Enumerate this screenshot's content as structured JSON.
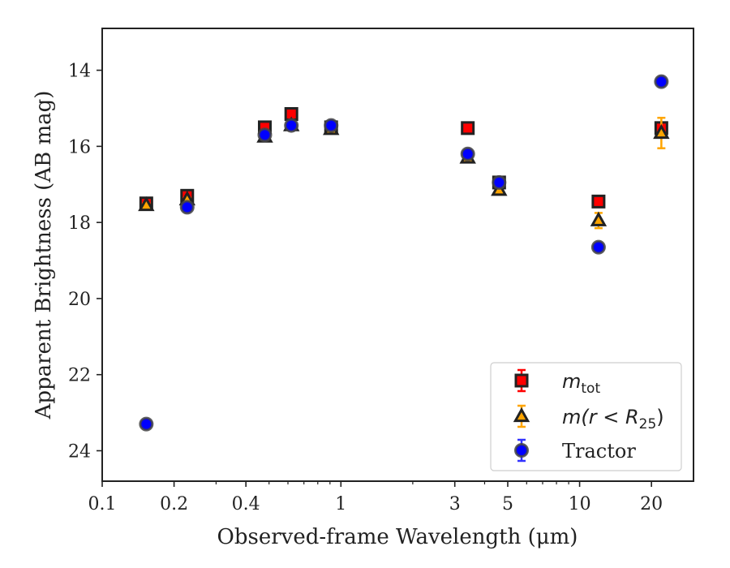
{
  "chart_data": {
    "type": "scatter",
    "title": "",
    "xlabel": "Observed-frame Wavelength (μm)",
    "ylabel": "Apparent Brightness (AB mag)",
    "xscale": "log",
    "xlim": [
      0.1,
      30
    ],
    "ylim": [
      24.8,
      12.9
    ],
    "y_inverted": true,
    "x_tick_labels": [
      "0.1",
      "0.2",
      "0.4",
      "1",
      "3",
      "5",
      "10",
      "20"
    ],
    "x_tick_values": [
      0.1,
      0.2,
      0.4,
      1,
      3,
      5,
      10,
      20
    ],
    "y_tick_values": [
      14,
      16,
      18,
      20,
      22,
      24
    ],
    "y_tick_labels": [
      "14",
      "16",
      "18",
      "20",
      "22",
      "24"
    ],
    "grid": false,
    "legend_position": "lower-right",
    "series": [
      {
        "name": "m_tot",
        "legend_main": "m",
        "legend_sub": "tot",
        "marker": "square",
        "color": "#ff0000",
        "edge": "#222222",
        "errcolor": "#ff0000",
        "points": [
          {
            "x": 0.153,
            "y": 17.5,
            "err": 0.05
          },
          {
            "x": 0.227,
            "y": 17.3,
            "err": 0.05
          },
          {
            "x": 0.48,
            "y": 15.5,
            "err": 0.05
          },
          {
            "x": 0.62,
            "y": 15.15,
            "err": 0.05
          },
          {
            "x": 0.91,
            "y": 15.5,
            "err": 0.05
          },
          {
            "x": 3.4,
            "y": 15.52,
            "err": 0.05
          },
          {
            "x": 4.6,
            "y": 16.95,
            "err": 0.05
          },
          {
            "x": 12.0,
            "y": 17.45,
            "err": 0.05
          },
          {
            "x": 22.0,
            "y": 15.52,
            "err": 0.1
          }
        ]
      },
      {
        "name": "m(r < R25)",
        "legend_main": "m(r < R",
        "legend_sub": "25",
        "legend_close": ")",
        "marker": "triangle",
        "color": "#ffa500",
        "edge": "#222222",
        "errcolor": "#ffa500",
        "points": [
          {
            "x": 0.153,
            "y": 17.55,
            "err": 0.05
          },
          {
            "x": 0.227,
            "y": 17.4,
            "err": 0.05
          },
          {
            "x": 0.48,
            "y": 15.75,
            "err": 0.05
          },
          {
            "x": 0.62,
            "y": 15.45,
            "err": 0.05
          },
          {
            "x": 0.91,
            "y": 15.55,
            "err": 0.05
          },
          {
            "x": 3.4,
            "y": 16.3,
            "err": 0.05
          },
          {
            "x": 4.6,
            "y": 17.15,
            "err": 0.05
          },
          {
            "x": 12.0,
            "y": 17.95,
            "err": 0.2
          },
          {
            "x": 22.0,
            "y": 15.65,
            "err": 0.4
          }
        ]
      },
      {
        "name": "Tractor",
        "legend_main": "Tractor",
        "marker": "circle",
        "color": "#0000ff",
        "edge": "#444444",
        "errcolor": "#3333ff",
        "points": [
          {
            "x": 0.153,
            "y": 23.3,
            "err": 0.05
          },
          {
            "x": 0.227,
            "y": 17.6,
            "err": 0.05
          },
          {
            "x": 0.48,
            "y": 15.7,
            "err": 0.05
          },
          {
            "x": 0.62,
            "y": 15.45,
            "err": 0.05
          },
          {
            "x": 0.91,
            "y": 15.45,
            "err": 0.05
          },
          {
            "x": 3.4,
            "y": 16.2,
            "err": 0.05
          },
          {
            "x": 4.6,
            "y": 16.95,
            "err": 0.05
          },
          {
            "x": 12.0,
            "y": 18.65,
            "err": 0.05
          },
          {
            "x": 22.0,
            "y": 14.3,
            "err": 0.05
          }
        ]
      }
    ]
  }
}
